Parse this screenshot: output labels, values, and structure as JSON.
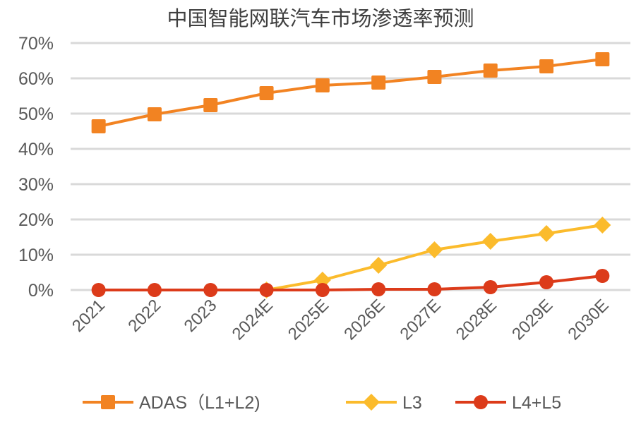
{
  "chart_data": {
    "type": "line",
    "title": "中国智能网联汽车市场渗透率预测",
    "xlabel": "",
    "ylabel": "",
    "categories": [
      "2021",
      "2022",
      "2023",
      "2024E",
      "2025E",
      "2026E",
      "2027E",
      "2028E",
      "2029E",
      "2030E"
    ],
    "ylim": [
      0,
      70
    ],
    "yticks": [
      "0%",
      "10%",
      "20%",
      "30%",
      "40%",
      "50%",
      "60%",
      "70%"
    ],
    "grid": true,
    "legend_position": "bottom",
    "series": [
      {
        "name": "ADAS（L1+L2)",
        "color": "#F28322",
        "marker": "square",
        "values": [
          46.4,
          49.8,
          52.4,
          55.8,
          58.0,
          58.8,
          60.4,
          62.2,
          63.4,
          65.4
        ]
      },
      {
        "name": "L3",
        "color": "#FBBB2C",
        "marker": "diamond",
        "values": [
          null,
          null,
          null,
          0,
          2.8,
          7.0,
          11.4,
          13.8,
          16.0,
          18.4
        ]
      },
      {
        "name": "L4+L5",
        "color": "#DC3B1A",
        "marker": "circle",
        "values": [
          0,
          0,
          0,
          0,
          0,
          0.2,
          0.2,
          0.8,
          2.2,
          4.0
        ]
      }
    ]
  }
}
